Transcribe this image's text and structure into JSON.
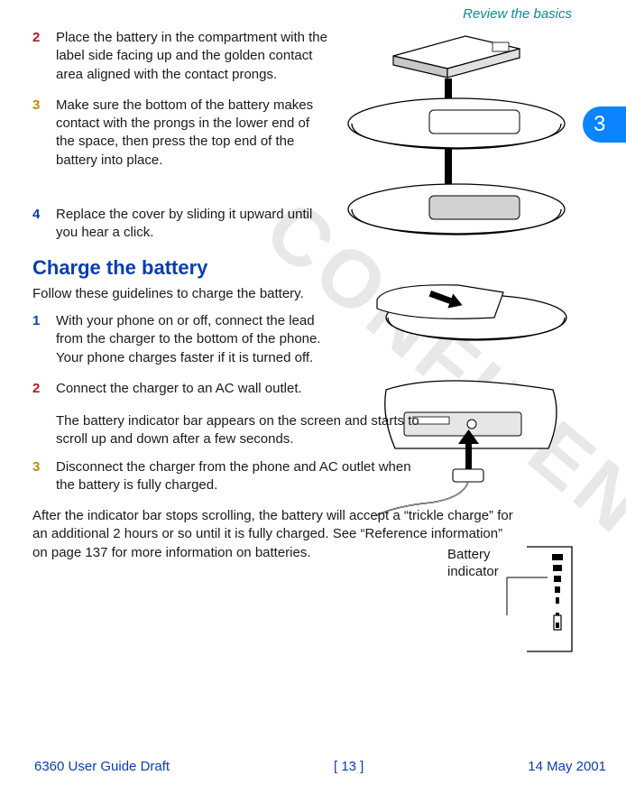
{
  "watermark_text": "CONFIDENTIAL",
  "tab_number": "3",
  "header": {
    "section_title": "Review the basics"
  },
  "battery_steps": {
    "s2": {
      "num": "2",
      "text": "Place the battery in the compartment with the label side facing up and the golden contact area aligned with the contact prongs."
    },
    "s3": {
      "num": "3",
      "text": "Make sure the bottom of the battery makes contact with the prongs in the lower end of the space, then press the top end of the battery into place."
    },
    "s4": {
      "num": "4",
      "text": "Replace the cover by sliding it upward until you hear a click."
    }
  },
  "charge": {
    "title": "Charge the battery",
    "intro": "Follow these guidelines to charge the battery.",
    "s1": {
      "num": "1",
      "text": "With your phone on or off, connect the lead from the charger to the bottom of the phone.  Your phone charges faster if it is turned off."
    },
    "s2": {
      "num": "2",
      "text": "Connect the charger to an AC wall outlet."
    },
    "indicator_note": "The battery indicator bar appears on the screen and starts to scroll up and down after a few seconds.",
    "s3": {
      "num": "3",
      "text": "Disconnect the charger from the phone and AC outlet when the battery is fully charged."
    },
    "trickle": "After the indicator bar stops scrolling, the battery will accept a “trickle charge” for an additional 2 hours or so until it is fully charged. See “Reference information” on page 137 for more information on batteries."
  },
  "battery_indicator_label": "Battery indicator",
  "footer": {
    "left": "6360 User Guide Draft",
    "center": "[ 13 ]",
    "right": "14 May 2001"
  },
  "colors": {
    "teal": "#009191",
    "blue": "#0a3db2",
    "tab_blue": "#0a84ff",
    "red": "#ab1e1e",
    "amber": "#c28a00"
  }
}
